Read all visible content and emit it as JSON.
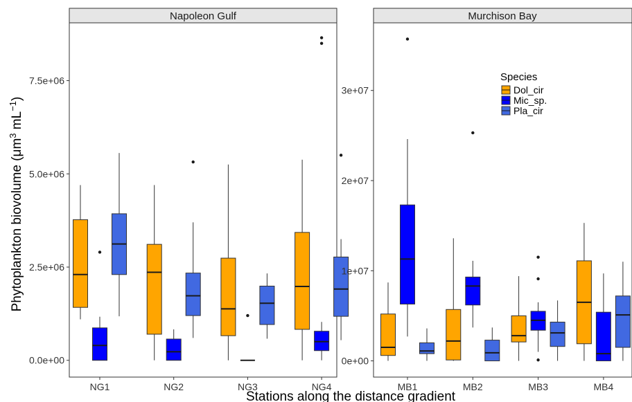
{
  "chart_data": {
    "type": "box",
    "xlabel": "Stations along the distance gradient",
    "ylabel": "Phytoplankton biovolume (μm3 mL−1)",
    "grid": false,
    "legend": {
      "title": "Species",
      "placement": "top-right inside Murchison Bay panel",
      "entries": [
        "Dol_cir",
        "Mic_sp.",
        "Pla_cir"
      ]
    },
    "series_colors": {
      "Dol_cir": "#FFA500",
      "Mic_sp.": "#0000FF",
      "Pla_cir": "#4169E1"
    },
    "panels": [
      {
        "title": "Napoleon Gulf",
        "categories": [
          "NG1",
          "NG2",
          "NG3",
          "NG4"
        ],
        "ylim": [
          -450000.0,
          9050000.0
        ],
        "yticks": [
          0,
          2500000,
          5000000,
          7500000
        ],
        "ytick_labels": [
          "0.0e+00",
          "2.5e+06",
          "5.0e+06",
          "7.5e+06"
        ],
        "boxes": [
          {
            "station": "NG1",
            "series": "Dol_cir",
            "whisker_low": 1100000,
            "q1": 1420000,
            "median": 2300000,
            "q3": 3770000,
            "whisker_high": 4700000,
            "outliers": []
          },
          {
            "station": "NG1",
            "series": "Mic_sp.",
            "whisker_low": 0,
            "q1": 0,
            "median": 400000,
            "q3": 870000,
            "whisker_high": 1170000,
            "outliers": [
              2900000
            ]
          },
          {
            "station": "NG1",
            "series": "Pla_cir",
            "whisker_low": 1180000,
            "q1": 2300000,
            "median": 3120000,
            "q3": 3930000,
            "whisker_high": 5560000,
            "outliers": []
          },
          {
            "station": "NG2",
            "series": "Dol_cir",
            "whisker_low": 0,
            "q1": 700000,
            "median": 2360000,
            "q3": 3110000,
            "whisker_high": 4700000,
            "outliers": []
          },
          {
            "station": "NG2",
            "series": "Mic_sp.",
            "whisker_low": 0,
            "q1": 0,
            "median": 230000,
            "q3": 570000,
            "whisker_high": 830000,
            "outliers": []
          },
          {
            "station": "NG2",
            "series": "Pla_cir",
            "whisker_low": 600000,
            "q1": 1200000,
            "median": 1730000,
            "q3": 2340000,
            "whisker_high": 3700000,
            "outliers": [
              5320000
            ]
          },
          {
            "station": "NG3",
            "series": "Dol_cir",
            "whisker_low": 0,
            "q1": 660000,
            "median": 1380000,
            "q3": 2740000,
            "whisker_high": 5250000,
            "outliers": []
          },
          {
            "station": "NG3",
            "series": "Mic_sp.",
            "whisker_low": 0,
            "q1": 0,
            "median": 0,
            "q3": 0,
            "whisker_high": 0,
            "outliers": [
              1200000
            ]
          },
          {
            "station": "NG3",
            "series": "Pla_cir",
            "whisker_low": 580000,
            "q1": 960000,
            "median": 1530000,
            "q3": 1990000,
            "whisker_high": 2330000,
            "outliers": []
          },
          {
            "station": "NG4",
            "series": "Dol_cir",
            "whisker_low": 0,
            "q1": 830000,
            "median": 1980000,
            "q3": 3430000,
            "whisker_high": 5380000,
            "outliers": []
          },
          {
            "station": "NG4",
            "series": "Mic_sp.",
            "whisker_low": 0,
            "q1": 260000,
            "median": 500000,
            "q3": 780000,
            "whisker_high": 1030000,
            "outliers": [
              8500000,
              8650000
            ]
          },
          {
            "station": "NG4",
            "series": "Pla_cir",
            "whisker_low": 540000,
            "q1": 1180000,
            "median": 1910000,
            "q3": 2770000,
            "whisker_high": 3250000,
            "outliers": [
              5500000
            ]
          }
        ]
      },
      {
        "title": "Murchison Bay",
        "categories": [
          "MB1",
          "MB2",
          "MB3",
          "MB4"
        ],
        "ylim": [
          -1800000.0,
          37500000.0
        ],
        "yticks": [
          0,
          10000000,
          20000000,
          30000000
        ],
        "ytick_labels": [
          "0e+00",
          "1e+07",
          "2e+07",
          "3e+07"
        ],
        "boxes": [
          {
            "station": "MB1",
            "series": "Dol_cir",
            "whisker_low": 0,
            "q1": 600000,
            "median": 1500000,
            "q3": 5200000,
            "whisker_high": 8700000,
            "outliers": []
          },
          {
            "station": "MB1",
            "series": "Mic_sp.",
            "whisker_low": 2700000,
            "q1": 6300000,
            "median": 11300000,
            "q3": 17300000,
            "whisker_high": 24600000,
            "outliers": [
              35700000
            ]
          },
          {
            "station": "MB1",
            "series": "Pla_cir",
            "whisker_low": 0,
            "q1": 800000,
            "median": 1100000,
            "q3": 2000000,
            "whisker_high": 3600000,
            "outliers": []
          },
          {
            "station": "MB2",
            "series": "Dol_cir",
            "whisker_low": 0,
            "q1": 100000,
            "median": 2200000,
            "q3": 5700000,
            "whisker_high": 13600000,
            "outliers": []
          },
          {
            "station": "MB2",
            "series": "Mic_sp.",
            "whisker_low": 3700000,
            "q1": 6200000,
            "median": 8300000,
            "q3": 9300000,
            "whisker_high": 11100000,
            "outliers": [
              25300000
            ]
          },
          {
            "station": "MB2",
            "series": "Pla_cir",
            "whisker_low": 0,
            "q1": 0,
            "median": 900000,
            "q3": 2300000,
            "whisker_high": 3700000,
            "outliers": []
          },
          {
            "station": "MB3",
            "series": "Dol_cir",
            "whisker_low": 0,
            "q1": 2100000,
            "median": 2800000,
            "q3": 5000000,
            "whisker_high": 9400000,
            "outliers": []
          },
          {
            "station": "MB3",
            "series": "Mic_sp.",
            "whisker_low": 1000000,
            "q1": 3400000,
            "median": 4500000,
            "q3": 5500000,
            "whisker_high": 6500000,
            "outliers": [
              11500000,
              9100000,
              100000
            ]
          },
          {
            "station": "MB3",
            "series": "Pla_cir",
            "whisker_low": 0,
            "q1": 1600000,
            "median": 3100000,
            "q3": 4300000,
            "whisker_high": 6700000,
            "outliers": []
          },
          {
            "station": "MB4",
            "series": "Dol_cir",
            "whisker_low": 0,
            "q1": 1900000,
            "median": 6500000,
            "q3": 11100000,
            "whisker_high": 15300000,
            "outliers": []
          },
          {
            "station": "MB4",
            "series": "Mic_sp.",
            "whisker_low": 0,
            "q1": 0,
            "median": 800000,
            "q3": 5400000,
            "whisker_high": 9700000,
            "outliers": []
          },
          {
            "station": "MB4",
            "series": "Pla_cir",
            "whisker_low": 0,
            "q1": 1500000,
            "median": 5100000,
            "q3": 7200000,
            "whisker_high": 11000000,
            "outliers": []
          }
        ]
      }
    ]
  }
}
